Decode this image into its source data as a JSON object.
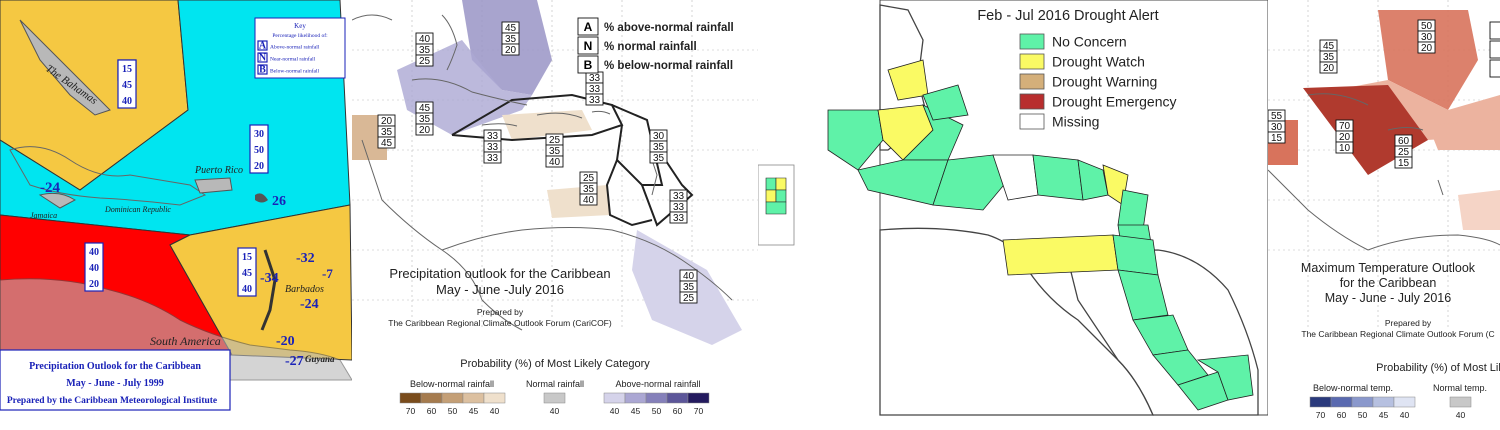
{
  "panel1": {
    "key": {
      "title": "Key",
      "subtitle": "Percentage likelihood of:",
      "items": [
        {
          "code": "A",
          "label": "Above-normal rainfall"
        },
        {
          "code": "N",
          "label": "Near-normal rainfall"
        },
        {
          "code": "B",
          "label": "Below-normal rainfall"
        }
      ]
    },
    "zone_values": {
      "north": [
        "15",
        "45",
        "40"
      ],
      "east": [
        "30",
        "50",
        "20"
      ],
      "south": [
        "40",
        "40",
        "20"
      ],
      "southeast": [
        "15",
        "45",
        "40"
      ]
    },
    "place_labels": {
      "bahamas": "The Bahamas",
      "puerto_rico": "Puerto Rico",
      "dominican_republic": "Dominican Republic",
      "jamaica": "Jamaica",
      "barbados": "Barbados",
      "south_america": "South America",
      "guyana": "Guyana"
    },
    "anomaly_numbers": [
      "-24",
      "26",
      "-32",
      "-7",
      "-34",
      "-24",
      "-20",
      "-27"
    ],
    "caption": {
      "line1": "Precipitation Outlook for the Caribbean",
      "line2": "May - June - July 1999",
      "line3": "Prepared by the Caribbean Meteorological Institute"
    },
    "colors": {
      "north": "#f5c842",
      "east": "#00e5f0",
      "south": "#ff0000",
      "southeast": "#f5c842",
      "text_blue": "#1a22b8"
    }
  },
  "panel2": {
    "legend": [
      {
        "code": "A",
        "label": "% above-normal rainfall"
      },
      {
        "code": "N",
        "label": "% normal rainfall"
      },
      {
        "code": "B",
        "label": "% below-normal rainfall"
      }
    ],
    "boxes": [
      [
        "40",
        "35",
        "25"
      ],
      [
        "45",
        "35",
        "20"
      ],
      [
        "20",
        "35",
        "45"
      ],
      [
        "45",
        "35",
        "20"
      ],
      [
        "33",
        "33",
        "33"
      ],
      [
        "33",
        "33",
        "33"
      ],
      [
        "25",
        "35",
        "40"
      ],
      [
        "30",
        "35",
        "35"
      ],
      [
        "25",
        "35",
        "40"
      ],
      [
        "33",
        "33",
        "33"
      ],
      [
        "40",
        "35",
        "25"
      ]
    ],
    "title": {
      "line1": "Precipitation outlook for the Caribbean",
      "line2": "May - June -July 2016"
    },
    "prepared_by": {
      "line1": "Prepared by",
      "line2": "The Caribbean Regional Climate Outlook Forum (CariCOF)"
    },
    "probability_title": "Probability (%) of Most Likely Category",
    "scales": [
      {
        "label": "Below-normal rainfall",
        "ticks": [
          "70",
          "60",
          "50",
          "45",
          "40"
        ],
        "colors": [
          "#7a4c1c",
          "#a57b4e",
          "#c49f76",
          "#dcc0a0",
          "#efe0cc"
        ]
      },
      {
        "label": "Normal rainfall",
        "ticks": [
          "40"
        ],
        "colors": [
          "#c8c8c8"
        ]
      },
      {
        "label": "Above-normal rainfall",
        "ticks": [
          "40",
          "45",
          "50",
          "60",
          "70"
        ],
        "colors": [
          "#d5d3ea",
          "#aba7d3",
          "#8580ba",
          "#5c5699",
          "#231a5e"
        ]
      }
    ]
  },
  "panel3": {
    "title": "Feb - Jul 2016 Drought Alert",
    "legend": [
      {
        "label": "No Concern",
        "color": "#5ff2a8"
      },
      {
        "label": "Drought Watch",
        "color": "#fafa64"
      },
      {
        "label": "Drought Warning",
        "color": "#d4af7a"
      },
      {
        "label": "Drought Emergency",
        "color": "#b82e2e"
      },
      {
        "label": "Missing",
        "color": "#ffffff"
      }
    ]
  },
  "panel4": {
    "boxes": [
      [
        "45",
        "35",
        "20"
      ],
      [
        "50",
        "30",
        "20"
      ],
      [
        "55",
        "30",
        "15"
      ],
      [
        "70",
        "20",
        "10"
      ],
      [
        "60",
        "25",
        "15"
      ]
    ],
    "title": {
      "line1": "Maximum Temperature Outlook",
      "line2": "for the Caribbean",
      "line3": "May - June - July 2016"
    },
    "prepared_by": {
      "line1": "Prepared by",
      "line2": "The Caribbean Regional Climate Outlook Forum (C"
    },
    "probability_title": "Probability (%) of Most Lik",
    "scales": [
      {
        "label": "Below-normal temp.",
        "ticks": [
          "70",
          "60",
          "50",
          "45",
          "40"
        ],
        "colors": [
          "#2a3a7c",
          "#5a6ab0",
          "#8a98cc",
          "#b6c0e0",
          "#dfe4f3"
        ]
      },
      {
        "label": "Normal temp.",
        "ticks": [
          "40"
        ],
        "colors": [
          "#c8c8c8"
        ]
      }
    ],
    "colors": {
      "strong": "#b03a2e",
      "medium": "#d8735c",
      "light": "#ecb39f",
      "pale": "#f5d4c6"
    }
  }
}
